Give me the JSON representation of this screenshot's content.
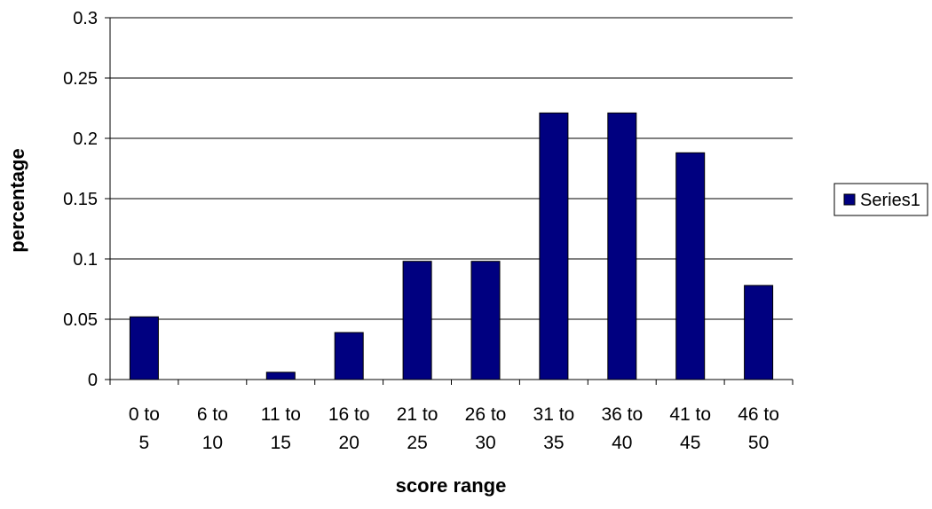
{
  "chart_data": {
    "type": "bar",
    "title": "",
    "xlabel": "score range",
    "ylabel": "percentage",
    "categories": [
      [
        "0 to",
        "5"
      ],
      [
        "6 to",
        "10"
      ],
      [
        "11 to",
        "15"
      ],
      [
        "16 to",
        "20"
      ],
      [
        "21 to",
        "25"
      ],
      [
        "26 to",
        "30"
      ],
      [
        "31 to",
        "35"
      ],
      [
        "36 to",
        "40"
      ],
      [
        "41 to",
        "45"
      ],
      [
        "46 to",
        "50"
      ]
    ],
    "series": [
      {
        "name": "Series1",
        "values": [
          0.052,
          0.0,
          0.006,
          0.039,
          0.098,
          0.098,
          0.221,
          0.221,
          0.188,
          0.078
        ],
        "color": "#000080"
      }
    ],
    "ylim": [
      0,
      0.3
    ],
    "yticks": [
      "0",
      "0.05",
      "0.1",
      "0.15",
      "0.2",
      "0.25",
      "0.3"
    ],
    "grid": true,
    "legend": "right"
  }
}
